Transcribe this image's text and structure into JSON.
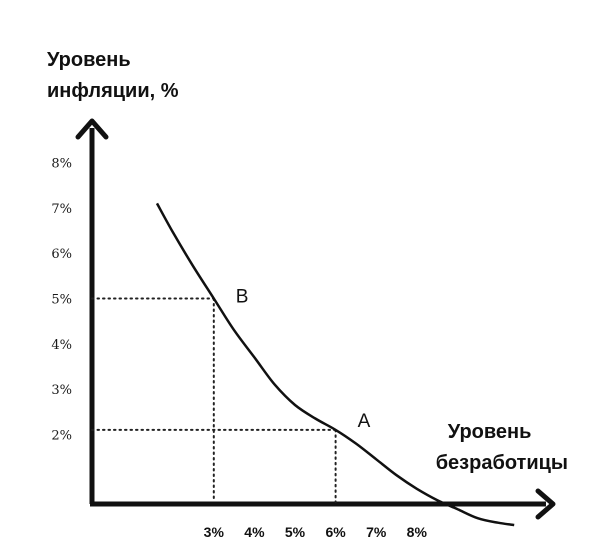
{
  "chart_data": {
    "type": "line",
    "ylabel_lines": [
      "Уровень",
      "инфляции, %"
    ],
    "xlabel_lines": [
      "Уровень",
      "безработицы"
    ],
    "y_ticks": [
      {
        "value": 2,
        "label": "2%"
      },
      {
        "value": 3,
        "label": "3%"
      },
      {
        "value": 4,
        "label": "4%"
      },
      {
        "value": 5,
        "label": "5%"
      },
      {
        "value": 6,
        "label": "6%"
      },
      {
        "value": 7,
        "label": "7%"
      },
      {
        "value": 8,
        "label": "8%"
      }
    ],
    "x_ticks": [
      {
        "value": 3,
        "label": "3%"
      },
      {
        "value": 4,
        "label": "4%"
      },
      {
        "value": 5,
        "label": "5%"
      },
      {
        "value": 6,
        "label": "6%"
      },
      {
        "value": 7,
        "label": "7%"
      },
      {
        "value": 8,
        "label": "8%"
      }
    ],
    "series": [
      {
        "x": [
          1.6,
          2.0,
          2.5,
          3.0,
          3.5,
          4.0,
          4.5,
          5.0,
          5.5,
          6.0,
          6.5,
          7.0,
          7.5,
          8.0,
          8.5,
          9.0,
          9.5,
          10.0,
          10.4
        ],
        "y": [
          7.1,
          6.45,
          5.7,
          5.0,
          4.3,
          3.7,
          3.1,
          2.65,
          2.35,
          2.1,
          1.8,
          1.45,
          1.1,
          0.8,
          0.55,
          0.35,
          0.15,
          0.05,
          0.0
        ]
      }
    ],
    "points": [
      {
        "label": "B",
        "x": 3,
        "y": 5
      },
      {
        "label": "A",
        "x": 6,
        "y": 2.1
      }
    ],
    "colors": {
      "ink": "#111111"
    }
  }
}
